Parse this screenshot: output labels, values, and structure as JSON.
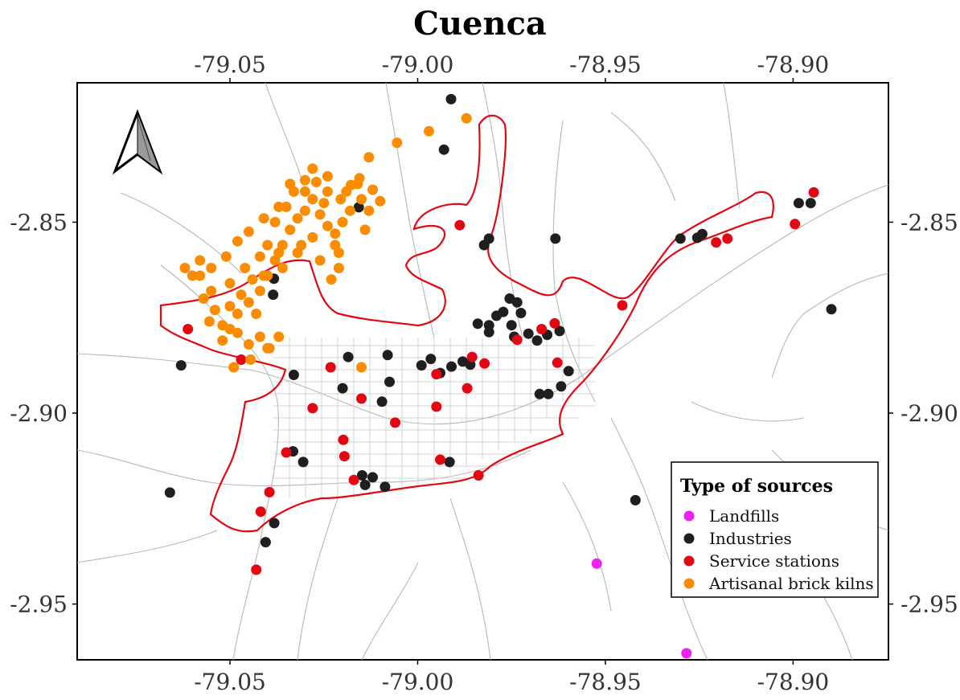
{
  "title": "Cuenca",
  "chart_data": {
    "type": "scatter",
    "title": "Cuenca",
    "xlim": [
      -79.0907,
      -78.8746
    ],
    "ylim": [
      -2.9646,
      -2.8135
    ],
    "x_ticks": [
      -79.05,
      -79.0,
      -78.95,
      -78.9
    ],
    "x_tick_labels": [
      "-79.05",
      "-79.00",
      "-78.95",
      "-78.90"
    ],
    "y_ticks": [
      -2.85,
      -2.9,
      -2.95
    ],
    "y_tick_labels": [
      "-2.85",
      "-2.90",
      "-2.95"
    ],
    "legend": {
      "title": "Type of sources",
      "position": "bottom-right"
    },
    "series": [
      {
        "name": "Landfills",
        "color": "#ee22ee",
        "points": [
          [
            -78.9523,
            -2.9394
          ],
          [
            -78.9284,
            -2.9629
          ]
        ]
      },
      {
        "name": "Industries",
        "color": "#1f1f1f",
        "points": [
          [
            -78.9911,
            -2.8178
          ],
          [
            -78.993,
            -2.831
          ],
          [
            -79.0157,
            -2.8461
          ],
          [
            -78.9823,
            -2.856
          ],
          [
            -78.981,
            -2.8543
          ],
          [
            -78.9633,
            -2.8543
          ],
          [
            -78.93,
            -2.8543
          ],
          [
            -78.9255,
            -2.8541
          ],
          [
            -78.9242,
            -2.8531
          ],
          [
            -78.8985,
            -2.845
          ],
          [
            -78.8953,
            -2.845
          ],
          [
            -78.8898,
            -2.8728
          ],
          [
            -79.0383,
            -2.8648
          ],
          [
            -79.0385,
            -2.869
          ],
          [
            -79.063,
            -2.8875
          ],
          [
            -79.033,
            -2.89
          ],
          [
            -79.02,
            -2.8935
          ],
          [
            -79.0185,
            -2.8853
          ],
          [
            -79.008,
            -2.8848
          ],
          [
            -79.0075,
            -2.8918
          ],
          [
            -79.0095,
            -2.897
          ],
          [
            -78.999,
            -2.8875
          ],
          [
            -78.9965,
            -2.8858
          ],
          [
            -78.994,
            -2.8895
          ],
          [
            -78.991,
            -2.8878
          ],
          [
            -78.988,
            -2.8865
          ],
          [
            -78.986,
            -2.8873
          ],
          [
            -78.984,
            -2.8766
          ],
          [
            -78.981,
            -2.877
          ],
          [
            -78.979,
            -2.8745
          ],
          [
            -78.9772,
            -2.8735
          ],
          [
            -78.9755,
            -2.87
          ],
          [
            -78.9735,
            -2.871
          ],
          [
            -78.9725,
            -2.8738
          ],
          [
            -78.975,
            -2.877
          ],
          [
            -78.9705,
            -2.8792
          ],
          [
            -78.9682,
            -2.881
          ],
          [
            -78.9655,
            -2.8795
          ],
          [
            -78.9622,
            -2.8785
          ],
          [
            -78.981,
            -2.8788
          ],
          [
            -78.9743,
            -2.88
          ],
          [
            -78.9598,
            -2.889
          ],
          [
            -78.9618,
            -2.893
          ],
          [
            -78.9675,
            -2.895
          ],
          [
            -78.9652,
            -2.895
          ],
          [
            -79.066,
            -2.9208
          ],
          [
            -79.0332,
            -2.91
          ],
          [
            -79.0305,
            -2.9128
          ],
          [
            -79.0148,
            -2.9163
          ],
          [
            -79.014,
            -2.9188
          ],
          [
            -79.012,
            -2.9168
          ],
          [
            -79.0087,
            -2.9193
          ],
          [
            -78.9915,
            -2.9128
          ],
          [
            -79.0382,
            -2.9288
          ],
          [
            -79.0405,
            -2.9338
          ],
          [
            -78.942,
            -2.9228
          ]
        ]
      },
      {
        "name": "Service stations",
        "color": "#e30613",
        "points": [
          [
            -79.0612,
            -2.878
          ],
          [
            -79.047,
            -2.886
          ],
          [
            -79.028,
            -2.8987
          ],
          [
            -79.0232,
            -2.888
          ],
          [
            -79.0198,
            -2.907
          ],
          [
            -79.0195,
            -2.9113
          ],
          [
            -79.017,
            -2.9175
          ],
          [
            -79.015,
            -2.8962
          ],
          [
            -79.006,
            -2.9025
          ],
          [
            -79.0395,
            -2.9207
          ],
          [
            -79.035,
            -2.9103
          ],
          [
            -79.0418,
            -2.9258
          ],
          [
            -79.043,
            -2.941
          ],
          [
            -78.995,
            -2.8983
          ],
          [
            -78.995,
            -2.8898
          ],
          [
            -78.9868,
            -2.8935
          ],
          [
            -78.9838,
            -2.9163
          ],
          [
            -78.994,
            -2.9122
          ],
          [
            -78.9855,
            -2.8853
          ],
          [
            -78.9822,
            -2.887
          ],
          [
            -78.9735,
            -2.8808
          ],
          [
            -78.967,
            -2.878
          ],
          [
            -78.9635,
            -2.8765
          ],
          [
            -78.9628,
            -2.8868
          ],
          [
            -78.9888,
            -2.8508
          ],
          [
            -78.9455,
            -2.8718
          ],
          [
            -78.9205,
            -2.8553
          ],
          [
            -78.9175,
            -2.8543
          ],
          [
            -78.8995,
            -2.8505
          ],
          [
            -78.8945,
            -2.8422
          ]
        ]
      },
      {
        "name": "Artisanal brick kilns",
        "color": "#fb8c00",
        "points": [
          [
            -79.0055,
            -2.8292
          ],
          [
            -78.997,
            -2.8262
          ],
          [
            -78.987,
            -2.8228
          ],
          [
            -79.013,
            -2.833
          ],
          [
            -79.0155,
            -2.8385
          ],
          [
            -79.0178,
            -2.8403
          ],
          [
            -79.0205,
            -2.844
          ],
          [
            -79.024,
            -2.842
          ],
          [
            -79.027,
            -2.8395
          ],
          [
            -79.03,
            -2.839
          ],
          [
            -79.033,
            -2.842
          ],
          [
            -79.037,
            -2.846
          ],
          [
            -79.041,
            -2.849
          ],
          [
            -79.045,
            -2.8525
          ],
          [
            -79.048,
            -2.855
          ],
          [
            -79.051,
            -2.859
          ],
          [
            -79.055,
            -2.862
          ],
          [
            -79.058,
            -2.864
          ],
          [
            -79.057,
            -2.87
          ],
          [
            -79.054,
            -2.873
          ],
          [
            -79.052,
            -2.877
          ],
          [
            -79.048,
            -2.874
          ],
          [
            -79.045,
            -2.871
          ],
          [
            -79.042,
            -2.868
          ],
          [
            -79.04,
            -2.864
          ],
          [
            -79.038,
            -2.86
          ],
          [
            -79.036,
            -2.856
          ],
          [
            -79.034,
            -2.852
          ],
          [
            -79.032,
            -2.849
          ],
          [
            -79.03,
            -2.847
          ],
          [
            -79.028,
            -2.844
          ],
          [
            -79.026,
            -2.848
          ],
          [
            -79.024,
            -2.851
          ],
          [
            -79.022,
            -2.853
          ],
          [
            -79.02,
            -2.85
          ],
          [
            -79.018,
            -2.847
          ],
          [
            -79.015,
            -2.844
          ],
          [
            -79.012,
            -2.8415
          ],
          [
            -79.01,
            -2.8445
          ],
          [
            -79.014,
            -2.852
          ],
          [
            -79.021,
            -2.858
          ],
          [
            -79.026,
            -2.86
          ],
          [
            -79.032,
            -2.858
          ],
          [
            -79.036,
            -2.862
          ],
          [
            -79.042,
            -2.859
          ],
          [
            -79.046,
            -2.862
          ],
          [
            -79.05,
            -2.866
          ],
          [
            -79.044,
            -2.865
          ],
          [
            -79.04,
            -2.856
          ],
          [
            -79.038,
            -2.85
          ],
          [
            -79.035,
            -2.846
          ],
          [
            -79.03,
            -2.842
          ],
          [
            -79.025,
            -2.845
          ],
          [
            -79.019,
            -2.842
          ],
          [
            -79.016,
            -2.84
          ],
          [
            -79.013,
            -2.847
          ],
          [
            -79.055,
            -2.868
          ],
          [
            -79.05,
            -2.872
          ],
          [
            -79.047,
            -2.869
          ],
          [
            -79.043,
            -2.874
          ],
          [
            -79.048,
            -2.879
          ],
          [
            -79.052,
            -2.881
          ],
          [
            -79.0555,
            -2.876
          ],
          [
            -79.06,
            -2.864
          ],
          [
            -79.062,
            -2.862
          ],
          [
            -79.058,
            -2.86
          ],
          [
            -79.037,
            -2.88
          ],
          [
            -79.0395,
            -2.883
          ],
          [
            -79.0445,
            -2.886
          ],
          [
            -79.049,
            -2.888
          ],
          [
            -79.045,
            -2.882
          ],
          [
            -79.05,
            -2.878
          ],
          [
            -79.042,
            -2.88
          ],
          [
            -79.024,
            -2.838
          ],
          [
            -79.028,
            -2.836
          ],
          [
            -79.034,
            -2.84
          ],
          [
            -79.022,
            -2.856
          ],
          [
            -79.028,
            -2.854
          ],
          [
            -79.031,
            -2.856
          ],
          [
            -79.037,
            -2.858
          ],
          [
            -79.041,
            -2.864
          ],
          [
            -79.023,
            -2.865
          ],
          [
            -79.021,
            -2.862
          ],
          [
            -79.04,
            -2.883
          ],
          [
            -79.015,
            -2.888
          ]
        ]
      }
    ]
  }
}
